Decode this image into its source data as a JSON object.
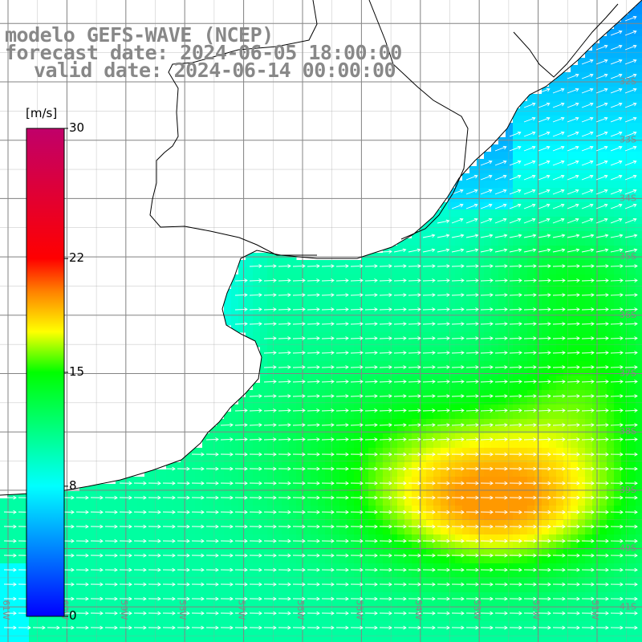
{
  "title": {
    "line1": "modelo GEFS-WAVE (NCEP)",
    "line2": "forecast date: 2024-06-05 18:00:00",
    "line3": "valid date: 2024-06-14 00:00:00"
  },
  "colorbar": {
    "unit": "[m/s]",
    "min": 0,
    "max": 30,
    "ticks": [
      {
        "value": 30,
        "label": "30"
      },
      {
        "value": 22,
        "label": "22"
      },
      {
        "value": 15,
        "label": "15"
      },
      {
        "value": 8,
        "label": "8"
      },
      {
        "value": 0,
        "label": "0"
      }
    ],
    "colors": [
      "#0000ff",
      "#00ffff",
      "#00ff00",
      "#ffff00",
      "#ff8000",
      "#ff0000",
      "#c0006a"
    ]
  },
  "map": {
    "lon_range": [
      -61.5,
      -50.3
    ],
    "lat_range": [
      -41.5,
      -30.5
    ],
    "lat_labels": [
      "32S",
      "33S",
      "34S",
      "35S",
      "36S",
      "37S",
      "38S",
      "39S",
      "40S",
      "41S"
    ],
    "lon_labels": [
      "61W",
      "60W",
      "59W",
      "58W",
      "57W",
      "56W",
      "55W",
      "54W",
      "53W",
      "52W",
      "51W"
    ],
    "grid": true,
    "arrow_color": "#ffffff",
    "coast_color": "#000000",
    "land_color": "#ffffff"
  }
}
